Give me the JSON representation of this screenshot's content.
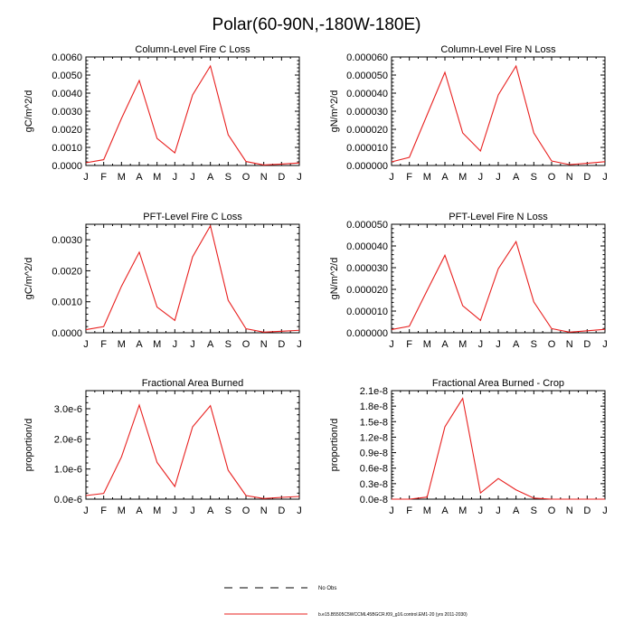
{
  "title": "Polar(60-90N,-180W-180E)",
  "colors": {
    "axis": "#000000",
    "line": "#e8201f",
    "legend_obs": "#000000"
  },
  "legend": {
    "obs_label": "No Obs",
    "model_label": "b.e15.B5505C5WCCML45BGCR.f09_g16.control.EM1-20 (yrs 2011-2030)"
  },
  "chart_data": [
    {
      "type": "line",
      "title": "Column-Level Fire C Loss",
      "ylabel": "gC/m^2/d",
      "xlabel": "",
      "categories": [
        "J",
        "F",
        "M",
        "A",
        "M",
        "J",
        "J",
        "A",
        "S",
        "O",
        "N",
        "D",
        "J"
      ],
      "ylim": [
        0,
        0.006
      ],
      "yticks": [
        "0.0000",
        "0.0010",
        "0.0020",
        "0.0030",
        "0.0040",
        "0.0050",
        "0.0060"
      ],
      "series": [
        {
          "name": "model",
          "values": [
            0.00015,
            0.00032,
            0.0026,
            0.0047,
            0.0015,
            0.0007,
            0.0039,
            0.0055,
            0.0017,
            0.00022,
            3e-05,
            8e-05,
            0.00014
          ]
        }
      ]
    },
    {
      "type": "line",
      "title": "Column-Level Fire N Loss",
      "ylabel": "gN/m^2/d",
      "xlabel": "",
      "categories": [
        "J",
        "F",
        "M",
        "A",
        "M",
        "J",
        "J",
        "A",
        "S",
        "O",
        "N",
        "D",
        "J"
      ],
      "ylim": [
        0,
        6e-05
      ],
      "yticks": [
        "0.000000",
        "0.000010",
        "0.000020",
        "0.000030",
        "0.000040",
        "0.000050",
        "0.000060"
      ],
      "series": [
        {
          "name": "model",
          "values": [
            2e-06,
            4.5e-06,
            2.8e-05,
            5.15e-05,
            1.8e-05,
            8e-06,
            3.9e-05,
            5.5e-05,
            1.8e-05,
            2.5e-06,
            5e-07,
            1.2e-06,
            2.1e-06
          ]
        }
      ]
    },
    {
      "type": "line",
      "title": "PFT-Level Fire C Loss",
      "ylabel": "gC/m^2/d",
      "xlabel": "",
      "categories": [
        "J",
        "F",
        "M",
        "A",
        "M",
        "J",
        "J",
        "A",
        "S",
        "O",
        "N",
        "D",
        "J"
      ],
      "ylim": [
        0,
        0.0035
      ],
      "yticks": [
        "0.0000",
        "0.0010",
        "0.0020",
        "0.0030"
      ],
      "series": [
        {
          "name": "model",
          "values": [
            0.0001,
            0.0002,
            0.0015,
            0.0026,
            0.00083,
            0.0004,
            0.00245,
            0.00345,
            0.00105,
            0.00013,
            2e-05,
            5e-05,
            8e-05
          ]
        }
      ]
    },
    {
      "type": "line",
      "title": "PFT-Level Fire N Loss",
      "ylabel": "gN/m^2/d",
      "xlabel": "",
      "categories": [
        "J",
        "F",
        "M",
        "A",
        "M",
        "J",
        "J",
        "A",
        "S",
        "O",
        "N",
        "D",
        "J"
      ],
      "ylim": [
        0,
        5e-05
      ],
      "yticks": [
        "0.000000",
        "0.000010",
        "0.000020",
        "0.000030",
        "0.000040",
        "0.000050"
      ],
      "series": [
        {
          "name": "model",
          "values": [
            1.5e-06,
            3e-06,
            1.95e-05,
            3.57e-05,
            1.25e-05,
            5.7e-06,
            2.95e-05,
            4.2e-05,
            1.42e-05,
            1.9e-06,
            3e-07,
            9e-07,
            1.6e-06
          ]
        }
      ]
    },
    {
      "type": "line",
      "title": "Fractional Area Burned",
      "ylabel": "proportion/d",
      "xlabel": "",
      "categories": [
        "J",
        "F",
        "M",
        "A",
        "M",
        "J",
        "J",
        "A",
        "S",
        "O",
        "N",
        "D",
        "J"
      ],
      "ylim": [
        0,
        3.6e-06
      ],
      "yticks": [
        "0.0e-6",
        "1.0e-6",
        "2.0e-6",
        "3.0e-6"
      ],
      "series": [
        {
          "name": "model",
          "values": [
            1.2e-07,
            1.9e-07,
            1.4e-06,
            3.12e-06,
            1.22e-06,
            4.2e-07,
            2.4e-06,
            3.1e-06,
            9.6e-07,
            1.2e-07,
            2e-08,
            6e-08,
            9e-08
          ]
        }
      ]
    },
    {
      "type": "line",
      "title": "Fractional Area Burned - Crop",
      "ylabel": "proportion/d",
      "xlabel": "",
      "categories": [
        "J",
        "F",
        "M",
        "A",
        "M",
        "J",
        "J",
        "A",
        "S",
        "O",
        "N",
        "D",
        "J"
      ],
      "ylim": [
        0,
        2.1e-08
      ],
      "yticks": [
        "0.0e-8",
        "0.3e-8",
        "0.6e-8",
        "0.9e-8",
        "1.2e-8",
        "1.5e-8",
        "1.8e-8",
        "2.1e-8"
      ],
      "series": [
        {
          "name": "model",
          "values": [
            0,
            0,
            4e-10,
            1.4e-08,
            1.95e-08,
            1.2e-09,
            4e-09,
            1.8e-09,
            2e-10,
            0,
            0,
            0,
            0
          ]
        }
      ]
    }
  ]
}
